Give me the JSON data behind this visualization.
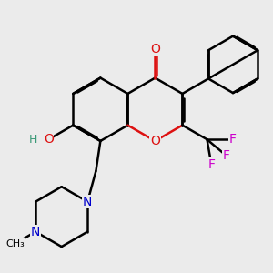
{
  "bg_color": "#ebebeb",
  "colors": {
    "C": "#000000",
    "O": "#dd1111",
    "N": "#0000cc",
    "F": "#cc00cc",
    "H": "#3a9977"
  },
  "bond_lw": 1.8,
  "dbo": 0.012,
  "font_size": 10
}
